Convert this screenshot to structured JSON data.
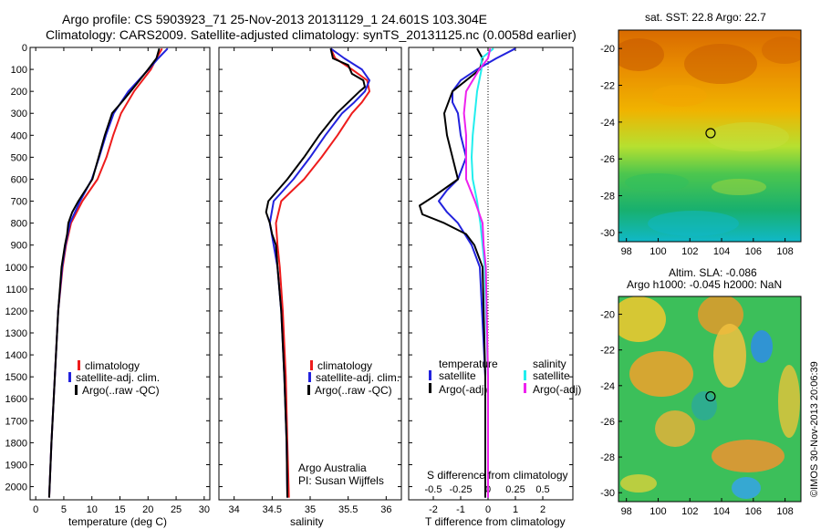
{
  "figure": {
    "title_line1": "Argo profile: CS 5903923_71 25-Nov-2013 20131129_1 24.601S 103.304E",
    "title_line2": "Climatology: CARS2009. Satellite-adjusted climatology: synTS_20131125.nc (0.0058d earlier)",
    "side_label": "©IMOS 30-Nov-2013 20:06:39"
  },
  "colors": {
    "climatology": "#ee1c1c",
    "satellite": "#2222dd",
    "argo": "#000000",
    "salinity_satellite": "#22eeee",
    "salinity_argo": "#ee22ee"
  },
  "chart_data": [
    {
      "type": "line",
      "name": "temperature",
      "xlabel": "temperature (deg C)",
      "xlim": [
        -1,
        31
      ],
      "xticks": [
        "0",
        "5",
        "10",
        "15",
        "20",
        "25",
        "30"
      ],
      "xtick_values": [
        0,
        5,
        10,
        15,
        20,
        25,
        30
      ],
      "ylim": [
        0,
        2060
      ],
      "yticks": [
        0,
        100,
        200,
        300,
        400,
        500,
        600,
        700,
        800,
        900,
        1000,
        1100,
        1200,
        1300,
        1400,
        1500,
        1600,
        1700,
        1800,
        1900,
        2000
      ],
      "legend": {
        "items": [
          "climatology",
          "satellite-adj. clim.",
          "Argo(..raw -QC)"
        ]
      },
      "series": [
        {
          "key": "climatology",
          "depth": [
            5,
            50,
            100,
            200,
            300,
            400,
            500,
            600,
            700,
            800,
            900,
            1000,
            1200,
            1500,
            1800,
            2050
          ],
          "values": [
            22.5,
            21.5,
            20.5,
            17.5,
            15.2,
            13.8,
            12.6,
            11.0,
            8.3,
            6.3,
            5.4,
            4.8,
            4.0,
            3.4,
            2.8,
            2.4
          ]
        },
        {
          "key": "satellite",
          "depth": [
            5,
            50,
            100,
            200,
            300,
            400,
            500,
            600,
            700,
            800,
            900,
            1000,
            1200,
            1500,
            1800,
            2050
          ],
          "values": [
            23.5,
            21.8,
            20.1,
            16.5,
            13.9,
            12.5,
            11.3,
            10.0,
            7.9,
            6.1,
            5.3,
            4.7,
            4.0,
            3.4,
            2.8,
            2.4
          ]
        },
        {
          "key": "argo",
          "depth": [
            5,
            50,
            100,
            200,
            250,
            300,
            400,
            500,
            600,
            700,
            750,
            800,
            850,
            900,
            1000,
            1200,
            1500,
            1800,
            2050
          ],
          "values": [
            22.0,
            21.5,
            20.0,
            16.9,
            15.3,
            13.6,
            12.3,
            11.2,
            10.1,
            7.6,
            6.5,
            5.8,
            5.6,
            5.2,
            4.6,
            4.0,
            3.4,
            2.8,
            2.4
          ]
        }
      ]
    },
    {
      "type": "line",
      "name": "salinity",
      "xlabel": "salinity",
      "xlim": [
        33.8,
        36.2
      ],
      "xticks": [
        "34",
        "34.5",
        "35",
        "35.5",
        "36"
      ],
      "xtick_values": [
        34,
        34.5,
        35,
        35.5,
        36
      ],
      "ylim": [
        0,
        2060
      ],
      "legend": {
        "items": [
          "climatology",
          "satellite-adj. clim.",
          "Argo(..raw -QC)"
        ]
      },
      "annotation": [
        "Argo Australia",
        "PI: Susan Wijffels"
      ],
      "series": [
        {
          "key": "climatology",
          "depth": [
            5,
            50,
            100,
            150,
            200,
            250,
            300,
            400,
            500,
            600,
            700,
            800,
            900,
            1000,
            1200,
            1500,
            1800,
            2050
          ],
          "values": [
            35.27,
            35.33,
            35.55,
            35.75,
            35.78,
            35.68,
            35.55,
            35.36,
            35.15,
            34.92,
            34.62,
            34.55,
            34.57,
            34.6,
            34.64,
            34.68,
            34.7,
            34.72
          ]
        },
        {
          "key": "satellite",
          "depth": [
            5,
            50,
            100,
            150,
            200,
            250,
            300,
            400,
            500,
            600,
            700,
            800,
            900,
            1000,
            1200,
            1500,
            1800,
            2050
          ],
          "values": [
            35.27,
            35.45,
            35.68,
            35.78,
            35.72,
            35.58,
            35.42,
            35.2,
            35.0,
            34.78,
            34.52,
            34.47,
            34.52,
            34.57,
            34.62,
            34.66,
            34.69,
            34.7
          ]
        },
        {
          "key": "argo",
          "depth": [
            5,
            50,
            80,
            120,
            150,
            180,
            200,
            250,
            300,
            400,
            500,
            600,
            700,
            750,
            800,
            850,
            900,
            1000,
            1200,
            1500,
            1800,
            2050
          ],
          "values": [
            35.27,
            35.3,
            35.5,
            35.55,
            35.7,
            35.72,
            35.65,
            35.5,
            35.35,
            35.12,
            34.92,
            34.7,
            34.45,
            34.42,
            34.47,
            34.5,
            34.55,
            34.57,
            34.62,
            34.66,
            34.69,
            34.7
          ]
        }
      ]
    },
    {
      "type": "line",
      "name": "difference",
      "xlabel": "T difference from climatology",
      "xlabel_top": "S difference from climatology",
      "xlim": [
        -2.9,
        3.1
      ],
      "xticks_T": [
        "-2",
        "-1",
        "0",
        "1",
        "2"
      ],
      "xtick_values_T": [
        -2,
        -1,
        0,
        1,
        2
      ],
      "xticks_S": [
        "-0.5",
        "-0.25",
        "0",
        "0.25",
        "0.5"
      ],
      "xtick_values_S": [
        -0.5,
        -0.25,
        0,
        0.25,
        0.5
      ],
      "ylim": [
        0,
        2060
      ],
      "legend": {
        "temperature_title": "temperature",
        "salinity_title": "salinity",
        "satellite": "satellite",
        "argo": "Argo(-adj)"
      },
      "series": [
        {
          "key": "T_satellite",
          "depth": [
            5,
            50,
            100,
            150,
            200,
            250,
            300,
            400,
            500,
            600,
            650,
            700,
            750,
            800,
            900,
            1000,
            1500,
            2050
          ],
          "values": [
            1.0,
            0.3,
            -0.4,
            -1.0,
            -1.3,
            -1.3,
            -1.1,
            -1.0,
            -0.8,
            -1.1,
            -1.5,
            -1.8,
            -1.5,
            -1.1,
            -0.6,
            -0.3,
            -0.1,
            -0.1
          ]
        },
        {
          "key": "T_argo",
          "depth": [
            5,
            50,
            100,
            200,
            300,
            400,
            500,
            600,
            680,
            720,
            760,
            800,
            850,
            900,
            1000,
            1500,
            2050
          ],
          "values": [
            -0.4,
            -0.2,
            -0.3,
            -1.3,
            -1.6,
            -1.5,
            -1.3,
            -1.1,
            -2.0,
            -2.5,
            -2.4,
            -1.6,
            -0.8,
            -0.5,
            -0.2,
            -0.1,
            -0.1
          ]
        },
        {
          "key": "S_satellite",
          "depth": [
            5,
            50,
            100,
            200,
            300,
            400,
            500,
            600,
            700,
            800,
            900,
            1000,
            1500,
            2050
          ],
          "values": [
            0.05,
            -0.06,
            -0.06,
            -0.1,
            -0.12,
            -0.14,
            -0.15,
            -0.14,
            -0.1,
            -0.07,
            -0.05,
            -0.03,
            0,
            0
          ],
          "style": "salinity_satellite"
        },
        {
          "key": "S_argo",
          "depth": [
            5,
            50,
            100,
            200,
            300,
            400,
            500,
            600,
            700,
            800,
            900,
            1000,
            1500,
            2050
          ],
          "values": [
            0.02,
            0.0,
            -0.08,
            -0.2,
            -0.22,
            -0.2,
            -0.2,
            -0.2,
            -0.12,
            -0.05,
            -0.04,
            -0.02,
            0,
            0
          ],
          "style": "salinity_argo"
        }
      ]
    }
  ],
  "maps": [
    {
      "name": "sst-map",
      "title": "sat. SST: 22.8 Argo: 22.7",
      "xticks": [
        "98",
        "100",
        "102",
        "104",
        "106",
        "108"
      ],
      "yticks": [
        "-20",
        "-22",
        "-24",
        "-26",
        "-28",
        "-30"
      ],
      "marker": {
        "lon": 103.304,
        "lat": -24.601
      }
    },
    {
      "name": "sla-map",
      "title_line1": "Altim. SLA: -0.086",
      "title_line2": "Argo h1000: -0.045 h2000: NaN",
      "xticks": [
        "98",
        "100",
        "102",
        "104",
        "106",
        "108"
      ],
      "yticks": [
        "-20",
        "-22",
        "-24",
        "-26",
        "-28",
        "-30"
      ],
      "marker": {
        "lon": 103.304,
        "lat": -24.601
      }
    }
  ]
}
